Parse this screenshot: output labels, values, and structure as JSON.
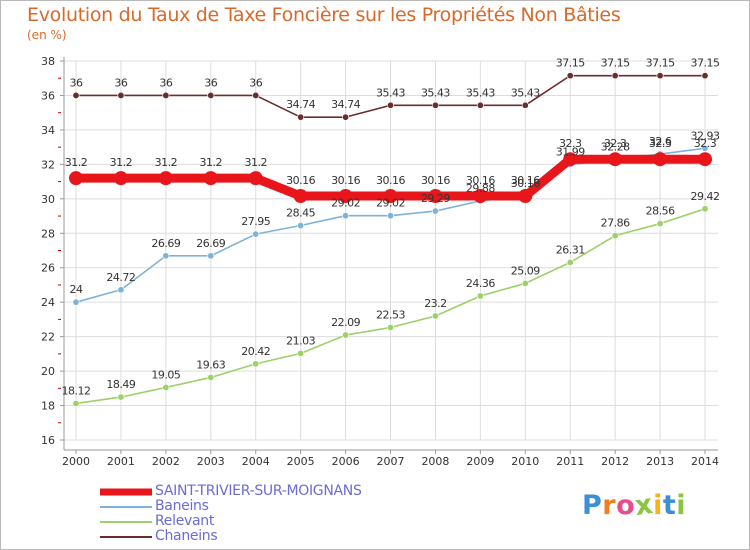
{
  "title": "Evolution du Taux de Taxe Foncière sur les Propriétés Non Bâties",
  "unit": "(en %)",
  "logo": {
    "letters": [
      "P",
      "r",
      "o",
      "x",
      "i",
      "t",
      "i"
    ],
    "colors": [
      "#3a8fd6",
      "#f07f1e",
      "#e94b8b",
      "#8bc43f",
      "#f5b417",
      "#3a8fd6",
      "#8bc43f"
    ]
  },
  "colors": {
    "title": "#d9692a",
    "grid": "#dddddd",
    "axis": "#9a9a9a",
    "tick_red": "#cc0000",
    "label": "#333333"
  },
  "chart_data": {
    "type": "line",
    "title": "Evolution du Taux de Taxe Foncière sur les Propriétés Non Bâties",
    "ylabel": "(en %)",
    "xlabel": "",
    "ylim": [
      16,
      38
    ],
    "yticks": [
      16,
      18,
      20,
      22,
      24,
      26,
      28,
      30,
      32,
      34,
      36,
      38
    ],
    "grid": true,
    "categories": [
      "2000",
      "2001",
      "2002",
      "2003",
      "2004",
      "2005",
      "2006",
      "2007",
      "2008",
      "2009",
      "2010",
      "2011",
      "2012",
      "2013",
      "2014"
    ],
    "series": [
      {
        "name": "Chaneins",
        "color": "#6b2c2c",
        "values": [
          36,
          36,
          36,
          36,
          36,
          34.74,
          34.74,
          35.43,
          35.43,
          35.43,
          35.43,
          37.15,
          37.15,
          37.15,
          37.15
        ],
        "labels": [
          "36",
          "36",
          "36",
          "36",
          "36",
          "34.74",
          "34.74",
          "35.43",
          "35.43",
          "35.43",
          "35.43",
          "37.15",
          "37.15",
          "37.15",
          "37.15"
        ]
      },
      {
        "name": "Relevant",
        "color": "#9bd168",
        "values": [
          18.12,
          18.49,
          19.05,
          19.63,
          20.42,
          21.03,
          22.09,
          22.53,
          23.2,
          24.36,
          25.09,
          26.31,
          27.86,
          28.56,
          29.42
        ],
        "labels": [
          "18.12",
          "18.49",
          "19.05",
          "19.63",
          "20.42",
          "21.03",
          "22.09",
          "22.53",
          "23.2",
          "24.36",
          "25.09",
          "26.31",
          "27.86",
          "28.56",
          "29.42"
        ]
      },
      {
        "name": "Baneins",
        "color": "#7fb2d9",
        "values": [
          24,
          24.72,
          26.69,
          26.69,
          27.95,
          28.45,
          29.02,
          29.02,
          29.29,
          29.88,
          30.16,
          31.99,
          32.28,
          32.6,
          32.93
        ],
        "labels": [
          "24",
          "24.72",
          "26.69",
          "26.69",
          "27.95",
          "28.45",
          "29.02",
          "29.02",
          "29.29",
          "29.88",
          "30.16",
          "31.99",
          "32.28",
          "32.6",
          "32.93"
        ]
      },
      {
        "name": "SAINT-TRIVIER-SUR-MOIGNANS",
        "color": "#e8161b",
        "values": [
          31.2,
          31.2,
          31.2,
          31.2,
          31.2,
          30.16,
          30.16,
          30.16,
          30.16,
          30.16,
          30.16,
          32.3,
          32.3,
          32.3,
          32.3
        ],
        "labels": [
          "31.2",
          "31.2",
          "31.2",
          "31.2",
          "31.2",
          "30.16",
          "30.16",
          "30.16",
          "30.16",
          "30.16",
          "30.16",
          "32.3",
          "32.3",
          "32.3",
          "32.3"
        ]
      }
    ],
    "legend": [
      {
        "name": "SAINT-TRIVIER-SUR-MOIGNANS",
        "color": "#e8161b"
      },
      {
        "name": "Baneins",
        "color": "#7fb2d9"
      },
      {
        "name": "Relevant",
        "color": "#9bd168"
      },
      {
        "name": "Chaneins",
        "color": "#6b2c2c"
      }
    ]
  }
}
